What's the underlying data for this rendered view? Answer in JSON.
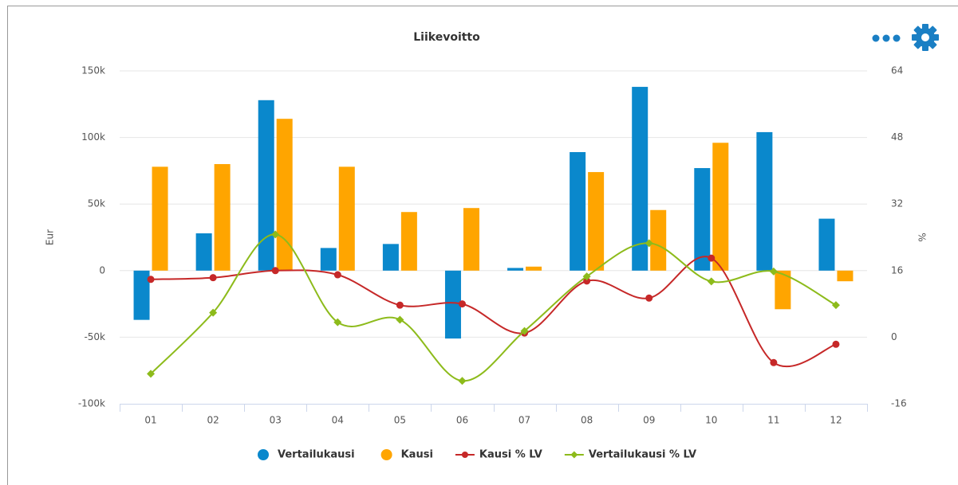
{
  "chart_data": {
    "type": "bar",
    "title": "Liikevoitto",
    "y_label": "Eur",
    "y2_label": "%",
    "categories": [
      "01",
      "02",
      "03",
      "04",
      "05",
      "06",
      "07",
      "08",
      "09",
      "10",
      "11",
      "12"
    ],
    "ylim": [
      -100000,
      150000
    ],
    "yticks": [
      {
        "value": -100000,
        "label": "-100k"
      },
      {
        "value": -50000,
        "label": "-50k"
      },
      0,
      {
        "value": 50000,
        "label": "50k"
      },
      {
        "value": 100000,
        "label": "100k"
      },
      {
        "value": 150000,
        "label": "150k"
      }
    ],
    "y2lim": [
      -16,
      64
    ],
    "y2ticks": [
      -16,
      0,
      16,
      32,
      48,
      64
    ],
    "grid": true,
    "legend": "bottom",
    "series": [
      {
        "name": "Vertailukausi",
        "color": "#0a88cc",
        "values": [
          -37000,
          28000,
          128000,
          17000,
          20000,
          -51000,
          2000,
          89000,
          138000,
          77000,
          104000,
          39000
        ]
      },
      {
        "name": "Kausi",
        "color": "#ffa500",
        "values": [
          78000,
          80000,
          114000,
          78000,
          44000,
          47000,
          3000,
          74000,
          45500,
          96000,
          -29000,
          -8000
        ]
      },
      {
        "name": "Kausi % LV",
        "color": "#c62828",
        "type": "line",
        "axis": "y2",
        "values": [
          13.9,
          14.3,
          16,
          15,
          7.7,
          8,
          1,
          13.5,
          9.4,
          19,
          -6.1,
          -1.7
        ]
      },
      {
        "name": "Vertailukausi % LV",
        "color": "#8dbb1b",
        "type": "line",
        "axis": "y2",
        "values": [
          -8.8,
          5.9,
          24.7,
          3.6,
          4.2,
          -10.5,
          1.5,
          14.6,
          22.6,
          13.4,
          15.8,
          7.7
        ]
      }
    ]
  }
}
